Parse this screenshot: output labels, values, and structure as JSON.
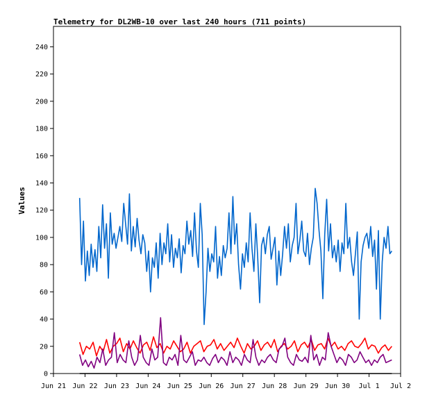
{
  "chart_data": {
    "type": "line",
    "title": "Telemetry for DL2WB-10 over last 240 hours (711 points)",
    "xlabel": "",
    "ylabel": "Values",
    "ylim": [
      0,
      255
    ],
    "yticks": [
      0,
      20,
      40,
      60,
      80,
      100,
      120,
      140,
      160,
      180,
      200,
      220,
      240
    ],
    "x_domain": [
      "Jun 21",
      "Jul 2"
    ],
    "x_ticks": [
      "Jun 21",
      "Jun 22",
      "Jun 23",
      "Jun 24",
      "Jun 25",
      "Jun 26",
      "Jun 27",
      "Jun 28",
      "Jun 29",
      "Jun 30",
      "Jul 1",
      "Jul 2"
    ],
    "grid": false,
    "legend": "none",
    "series": [
      {
        "color": "#0066cc",
        "x_start_day": 0.83,
        "x_end_day": 10.72,
        "values": [
          129,
          80,
          112,
          68,
          90,
          72,
          95,
          78,
          91,
          75,
          108,
          85,
          124,
          92,
          110,
          70,
          118,
          95,
          103,
          92,
          100,
          108,
          97,
          125,
          110,
          95,
          132,
          90,
          108,
          93,
          114,
          98,
          88,
          102,
          96,
          75,
          90,
          60,
          85,
          78,
          96,
          70,
          103,
          80,
          96,
          88,
          110,
          82,
          102,
          78,
          92,
          85,
          99,
          74,
          94,
          88,
          112,
          95,
          105,
          86,
          118,
          90,
          78,
          125,
          102,
          36,
          60,
          92,
          75,
          88,
          82,
          108,
          70,
          86,
          72,
          94,
          85,
          92,
          118,
          88,
          130,
          95,
          110,
          80,
          62,
          88,
          78,
          96,
          82,
          118,
          92,
          75,
          110,
          85,
          52,
          94,
          100,
          88,
          102,
          108,
          84,
          92,
          100,
          65,
          90,
          72,
          88,
          108,
          92,
          110,
          82,
          94,
          100,
          125,
          88,
          98,
          112,
          90,
          86,
          103,
          80,
          92,
          100,
          136,
          125,
          105,
          90,
          55,
          102,
          128,
          90,
          110,
          85,
          94,
          82,
          98,
          75,
          96,
          88,
          125,
          92,
          100,
          82,
          72,
          88,
          104,
          40,
          82,
          94,
          100,
          103,
          92,
          108,
          86,
          98,
          62,
          105,
          40,
          82,
          100,
          92,
          108,
          88,
          90
        ]
      },
      {
        "color": "#ff0000",
        "x_start_day": 0.83,
        "x_end_day": 10.72,
        "values": [
          23,
          14,
          20,
          18,
          23,
          13,
          20,
          16,
          25,
          15,
          20,
          22,
          26,
          16,
          22,
          18,
          24,
          19,
          15,
          21,
          23,
          17,
          27,
          19,
          22,
          15,
          20,
          18,
          24,
          20,
          16,
          18,
          23,
          15,
          20,
          22,
          24,
          16,
          20,
          21,
          25,
          18,
          22,
          17,
          20,
          23,
          19,
          26,
          20,
          15,
          22,
          18,
          20,
          24,
          17,
          21,
          23,
          19,
          25,
          16,
          20,
          22,
          18,
          20,
          24,
          16,
          21,
          23,
          19,
          25,
          17,
          21,
          22,
          18,
          26,
          20,
          23,
          18,
          20,
          17,
          22,
          24,
          20,
          19,
          22,
          26,
          18,
          21,
          20,
          15,
          19,
          21,
          17,
          20
        ]
      },
      {
        "color": "#800080",
        "x_start_day": 0.83,
        "x_end_day": 10.72,
        "values": [
          14,
          6,
          10,
          5,
          9,
          4,
          12,
          8,
          18,
          6,
          10,
          12,
          30,
          8,
          14,
          10,
          8,
          24,
          12,
          6,
          10,
          28,
          12,
          8,
          6,
          18,
          10,
          12,
          41,
          8,
          6,
          12,
          10,
          14,
          6,
          28,
          10,
          8,
          12,
          16,
          6,
          10,
          9,
          12,
          8,
          6,
          11,
          14,
          8,
          12,
          10,
          6,
          16,
          8,
          12,
          10,
          6,
          14,
          10,
          8,
          25,
          12,
          6,
          10,
          8,
          12,
          14,
          10,
          8,
          18,
          20,
          26,
          12,
          8,
          6,
          14,
          10,
          9,
          12,
          8,
          28,
          10,
          14,
          6,
          12,
          10,
          30,
          20,
          14,
          8,
          12,
          10,
          6,
          14,
          12,
          8,
          10,
          16,
          12,
          8,
          10,
          6,
          10,
          8,
          12,
          14,
          8,
          9,
          10
        ]
      },
      {
        "color": "#000000",
        "x_start_day": 0.83,
        "x_end_day": 10.72,
        "values": [
          0,
          0
        ]
      }
    ]
  }
}
